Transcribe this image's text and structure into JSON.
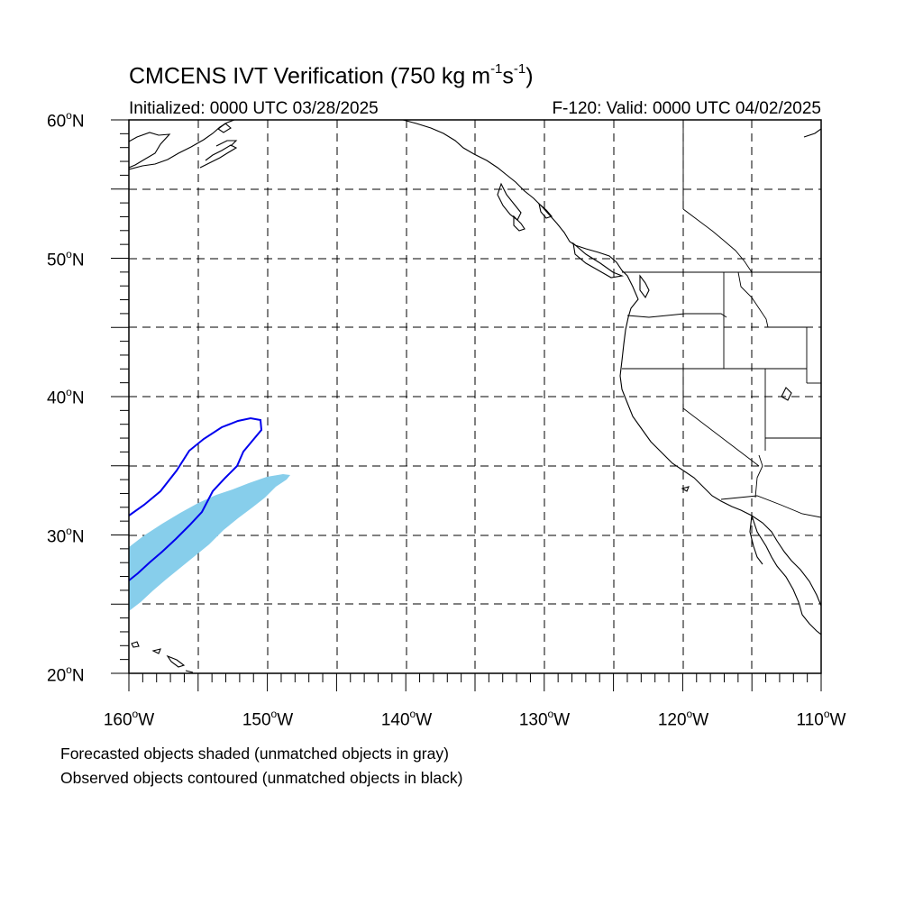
{
  "title": {
    "prefix": "CMCENS IVT Verification (750 kg m",
    "exp1": "-1",
    "mid": "s",
    "exp2": "-1",
    "suffix": ")"
  },
  "subtitle_left": "Initialized: 0000 UTC 03/28/2025",
  "subtitle_right": "F-120: Valid: 0000 UTC 04/02/2025",
  "map": {
    "lon_range": [
      -160,
      -110
    ],
    "lat_range": [
      20,
      60
    ],
    "gridlines": "dashed",
    "lat_labels": [
      {
        "value": 60,
        "text": "60",
        "hemi": "N"
      },
      {
        "value": 50,
        "text": "50",
        "hemi": "N"
      },
      {
        "value": 40,
        "text": "40",
        "hemi": "N"
      },
      {
        "value": 30,
        "text": "30",
        "hemi": "N"
      },
      {
        "value": 20,
        "text": "20",
        "hemi": "N"
      }
    ],
    "lon_labels": [
      {
        "value": -160,
        "text": "160",
        "hemi": "W"
      },
      {
        "value": -150,
        "text": "150",
        "hemi": "W"
      },
      {
        "value": -140,
        "text": "140",
        "hemi": "W"
      },
      {
        "value": -130,
        "text": "130",
        "hemi": "W"
      },
      {
        "value": -120,
        "text": "120",
        "hemi": "W"
      },
      {
        "value": -110,
        "text": "110",
        "hemi": "W"
      }
    ],
    "forecast_object_color": "#87ceeb",
    "observed_contour_color": "#0000ee"
  },
  "footer": {
    "line1": "Forecasted objects shaded (unmatched objects in gray)",
    "line2": "Observed objects contoured (unmatched objects in black)"
  }
}
